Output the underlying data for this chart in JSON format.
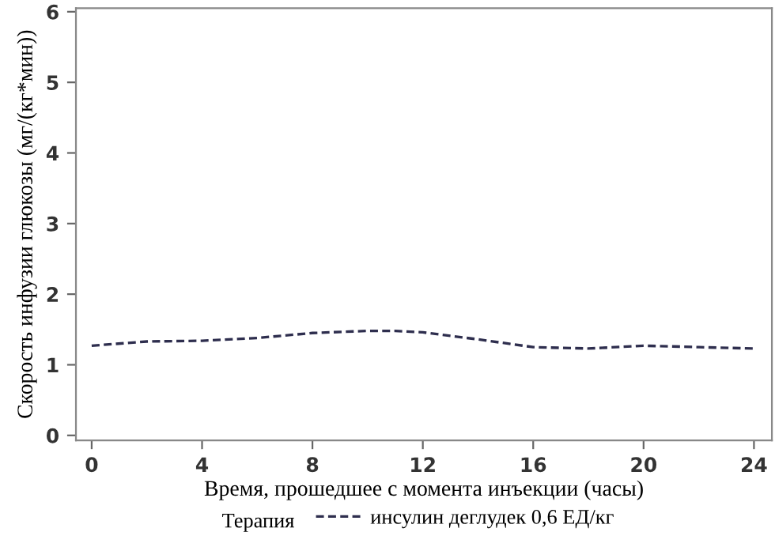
{
  "chart_data": {
    "type": "line",
    "xlabel": "Время, прошедшее с момента инъекции (часы)",
    "ylabel": "Скорость инфузии глюкозы (мг/(кг*мин))",
    "legend_title": "Терапия",
    "x": [
      0,
      2,
      4,
      6,
      8,
      10,
      11,
      12,
      14,
      16,
      18,
      20,
      22,
      24
    ],
    "series": [
      {
        "name": "инсулин деглудек 0,6 ЕД/кг",
        "color": "#2e2e4e",
        "values": [
          1.27,
          1.33,
          1.34,
          1.38,
          1.45,
          1.48,
          1.48,
          1.46,
          1.36,
          1.25,
          1.23,
          1.27,
          1.25,
          1.23
        ]
      }
    ],
    "xlim": [
      -0.57,
      24.65
    ],
    "ylim": [
      -0.07,
      6.05
    ],
    "xticks": [
      0,
      4,
      8,
      12,
      16,
      20,
      24
    ],
    "yticks": [
      0,
      1,
      2,
      3,
      4,
      5,
      6
    ],
    "grid": false,
    "legend": "bottom",
    "line_style": "dashed",
    "marker": "none"
  }
}
